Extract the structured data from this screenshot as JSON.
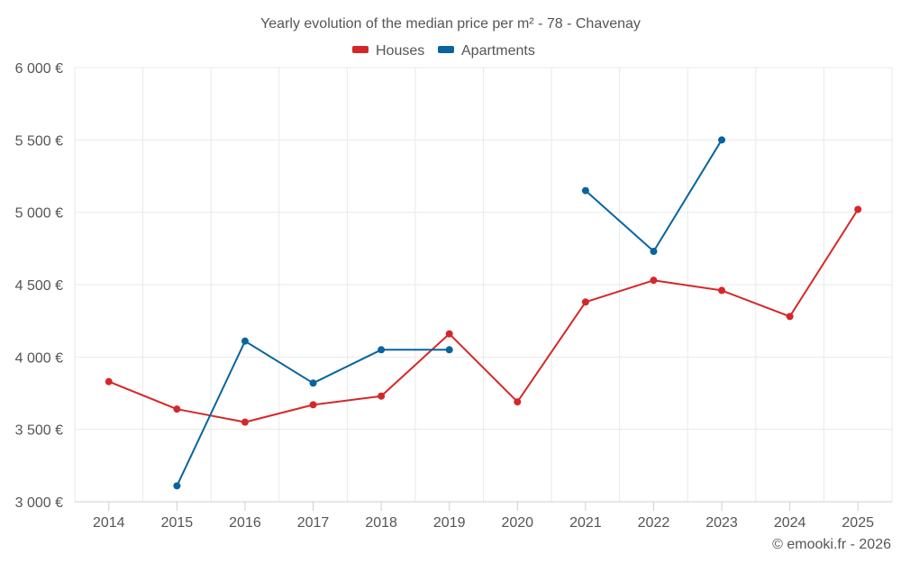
{
  "chart_data": {
    "type": "line",
    "title": "Yearly evolution of the median price per m² - 78 - Chavenay",
    "xlabel": "",
    "ylabel": "",
    "categories": [
      "2014",
      "2015",
      "2016",
      "2017",
      "2018",
      "2019",
      "2020",
      "2021",
      "2022",
      "2023",
      "2024",
      "2025"
    ],
    "ylim": [
      3000,
      6000
    ],
    "yticks": [
      3000,
      3500,
      4000,
      4500,
      5000,
      5500,
      6000
    ],
    "ytick_labels": [
      "3 000 €",
      "3 500 €",
      "4 000 €",
      "4 500 €",
      "5 000 €",
      "5 500 €",
      "6 000 €"
    ],
    "grid": true,
    "legend_position": "top-center",
    "series": [
      {
        "name": "Houses",
        "color": "#d62728",
        "values": [
          3830,
          3640,
          3550,
          3670,
          3730,
          4160,
          3690,
          4380,
          4530,
          4460,
          4280,
          5020
        ]
      },
      {
        "name": "Apartments",
        "color": "#08649e",
        "values": [
          null,
          3110,
          4110,
          3820,
          4050,
          4050,
          null,
          5150,
          4730,
          5500,
          null,
          null
        ]
      }
    ]
  },
  "credit": "© emooki.fr - 2026"
}
